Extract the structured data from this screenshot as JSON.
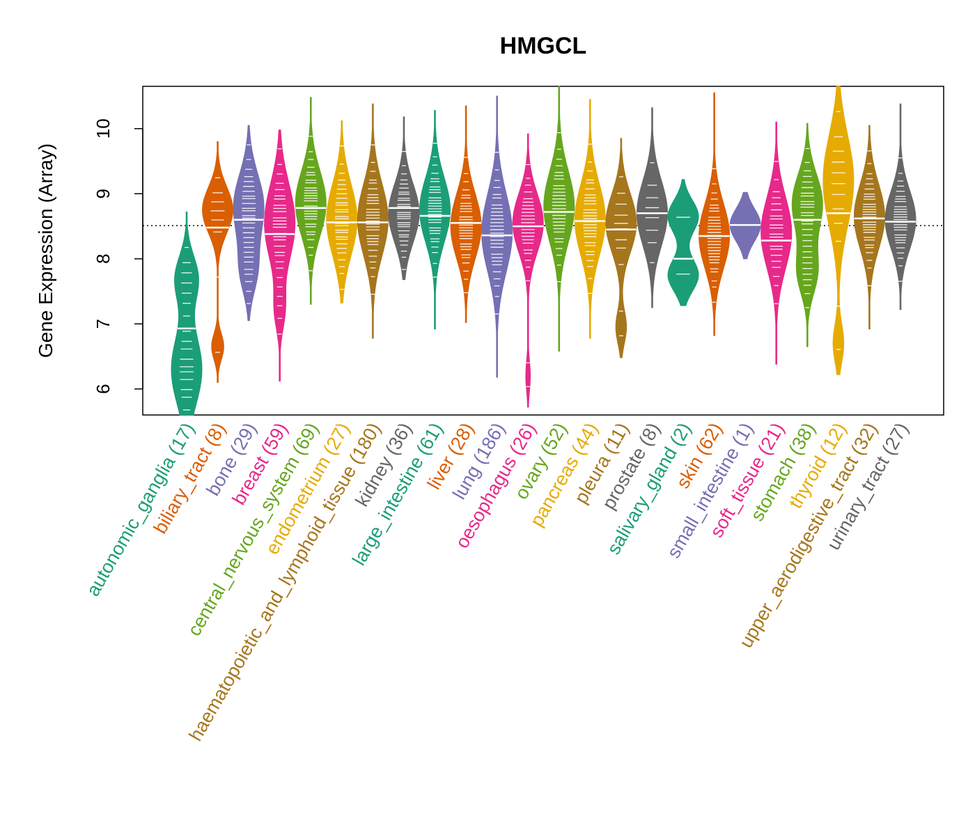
{
  "chart_data": {
    "type": "violin",
    "title": "HMGCL",
    "xlabel": "",
    "ylabel": "Gene Expression (Array)",
    "ylim": [
      5.6,
      10.65
    ],
    "yticks": [
      6,
      7,
      8,
      9,
      10
    ],
    "reference_line": 8.51,
    "palette": {
      "teal": "#1b9e77",
      "orange": "#d95f02",
      "purple": "#7570b3",
      "magenta": "#e7298a",
      "green": "#66a61e",
      "gold": "#e6ab02",
      "brown": "#a6761d",
      "gray": "#666666"
    },
    "series": [
      {
        "name": "autonomic_ganglia",
        "n": 17,
        "label": "autonomic_ganglia (17)",
        "color": "#1b9e77",
        "median": 6.93,
        "min": 5.6,
        "max": 8.72,
        "modes": [
          [
            6.3,
            1.0,
            0.55
          ],
          [
            7.7,
            0.75,
            0.35
          ]
        ]
      },
      {
        "name": "biliary_tract",
        "n": 8,
        "label": "biliary_tract (8)",
        "color": "#d95f02",
        "median": 8.48,
        "min": 6.1,
        "max": 9.8,
        "modes": [
          [
            8.75,
            1.0,
            0.35
          ],
          [
            6.65,
            0.4,
            0.2
          ]
        ]
      },
      {
        "name": "bone",
        "n": 29,
        "label": "bone (29)",
        "color": "#7570b3",
        "median": 8.6,
        "min": 7.05,
        "max": 10.05,
        "modes": [
          [
            8.8,
            1.0,
            0.5
          ],
          [
            7.8,
            0.5,
            0.35
          ]
        ]
      },
      {
        "name": "breast",
        "n": 59,
        "label": "breast (59)",
        "color": "#e7298a",
        "median": 8.38,
        "min": 6.12,
        "max": 9.98,
        "modes": [
          [
            8.55,
            1.0,
            0.6
          ],
          [
            7.2,
            0.3,
            0.3
          ]
        ]
      },
      {
        "name": "central_nervous_system",
        "n": 69,
        "label": "central_nervous_system (69)",
        "color": "#66a61e",
        "median": 8.78,
        "min": 7.3,
        "max": 10.48,
        "modes": [
          [
            8.85,
            1.0,
            0.5
          ]
        ]
      },
      {
        "name": "endometrium",
        "n": 27,
        "label": "endometrium (27)",
        "color": "#e6ab02",
        "median": 8.56,
        "min": 7.32,
        "max": 10.12,
        "modes": [
          [
            8.6,
            1.0,
            0.55
          ]
        ]
      },
      {
        "name": "haematopoietic_and_lymphoid_tissue",
        "n": 180,
        "label": "haematopoietic_and_lymphoid_tissue (180)",
        "color": "#a6761d",
        "median": 8.56,
        "min": 6.78,
        "max": 10.38,
        "modes": [
          [
            8.6,
            1.0,
            0.55
          ]
        ]
      },
      {
        "name": "kidney",
        "n": 36,
        "label": "kidney (36)",
        "color": "#666666",
        "median": 8.78,
        "min": 7.68,
        "max": 10.18,
        "modes": [
          [
            8.7,
            1.0,
            0.45
          ]
        ]
      },
      {
        "name": "large_intestine",
        "n": 61,
        "label": "large_intestine (61)",
        "color": "#1b9e77",
        "median": 8.66,
        "min": 6.92,
        "max": 10.28,
        "modes": [
          [
            8.75,
            1.0,
            0.5
          ]
        ]
      },
      {
        "name": "liver",
        "n": 28,
        "label": "liver (28)",
        "color": "#d95f02",
        "median": 8.55,
        "min": 7.02,
        "max": 10.35,
        "modes": [
          [
            8.5,
            1.0,
            0.5
          ]
        ]
      },
      {
        "name": "lung",
        "n": 186,
        "label": "lung (186)",
        "color": "#7570b3",
        "median": 8.36,
        "min": 6.18,
        "max": 10.5,
        "modes": [
          [
            8.4,
            1.0,
            0.6
          ]
        ]
      },
      {
        "name": "oesophagus",
        "n": 26,
        "label": "oesophagus (26)",
        "color": "#e7298a",
        "median": 8.5,
        "min": 5.72,
        "max": 9.92,
        "modes": [
          [
            8.55,
            1.0,
            0.45
          ],
          [
            6.2,
            0.15,
            0.25
          ]
        ]
      },
      {
        "name": "ovary",
        "n": 52,
        "label": "ovary (52)",
        "color": "#66a61e",
        "median": 8.72,
        "min": 6.58,
        "max": 10.65,
        "modes": [
          [
            8.8,
            1.0,
            0.55
          ]
        ]
      },
      {
        "name": "pancreas",
        "n": 44,
        "label": "pancreas (44)",
        "color": "#e6ab02",
        "median": 8.58,
        "min": 6.78,
        "max": 10.45,
        "modes": [
          [
            8.6,
            1.0,
            0.55
          ]
        ]
      },
      {
        "name": "pleura",
        "n": 11,
        "label": "pleura (11)",
        "color": "#a6761d",
        "median": 8.45,
        "min": 6.48,
        "max": 9.85,
        "modes": [
          [
            8.55,
            1.0,
            0.45
          ],
          [
            6.95,
            0.35,
            0.25
          ]
        ]
      },
      {
        "name": "prostate",
        "n": 8,
        "label": "prostate (8)",
        "color": "#666666",
        "median": 8.7,
        "min": 7.25,
        "max": 10.32,
        "modes": [
          [
            8.7,
            1.0,
            0.5
          ]
        ]
      },
      {
        "name": "salivary_gland",
        "n": 2,
        "label": "salivary_gland (2)",
        "color": "#1b9e77",
        "median": 8.0,
        "min": 7.28,
        "max": 9.22,
        "modes": [
          [
            8.65,
            0.7,
            0.25
          ],
          [
            7.75,
            0.7,
            0.25
          ]
        ]
      },
      {
        "name": "skin",
        "n": 62,
        "label": "skin (62)",
        "color": "#d95f02",
        "median": 8.35,
        "min": 6.82,
        "max": 10.55,
        "modes": [
          [
            8.35,
            1.0,
            0.5
          ]
        ]
      },
      {
        "name": "small_intestine",
        "n": 1,
        "label": "small_intestine (1)",
        "color": "#7570b3",
        "median": 8.52,
        "min": 8.0,
        "max": 9.02,
        "modes": [
          [
            8.52,
            0.5,
            0.25
          ]
        ]
      },
      {
        "name": "soft_tissue",
        "n": 21,
        "label": "soft_tissue (21)",
        "color": "#e7298a",
        "median": 8.28,
        "min": 6.38,
        "max": 10.1,
        "modes": [
          [
            8.4,
            1.0,
            0.55
          ]
        ]
      },
      {
        "name": "stomach",
        "n": 38,
        "label": "stomach (38)",
        "color": "#66a61e",
        "median": 8.6,
        "min": 6.65,
        "max": 10.08,
        "modes": [
          [
            8.85,
            1.0,
            0.45
          ],
          [
            7.8,
            0.65,
            0.35
          ]
        ]
      },
      {
        "name": "thyroid",
        "n": 12,
        "label": "thyroid (12)",
        "color": "#e6ab02",
        "median": 8.7,
        "min": 6.22,
        "max": 10.65,
        "modes": [
          [
            9.2,
            1.0,
            0.7
          ],
          [
            6.7,
            0.35,
            0.3
          ]
        ]
      },
      {
        "name": "upper_aerodigestive_tract",
        "n": 32,
        "label": "upper_aerodigestive_tract (32)",
        "color": "#a6761d",
        "median": 8.62,
        "min": 6.92,
        "max": 10.05,
        "modes": [
          [
            8.65,
            1.0,
            0.5
          ]
        ]
      },
      {
        "name": "urinary_tract",
        "n": 27,
        "label": "urinary_tract (27)",
        "color": "#666666",
        "median": 8.57,
        "min": 7.22,
        "max": 10.38,
        "modes": [
          [
            8.6,
            1.0,
            0.45
          ]
        ]
      }
    ]
  }
}
